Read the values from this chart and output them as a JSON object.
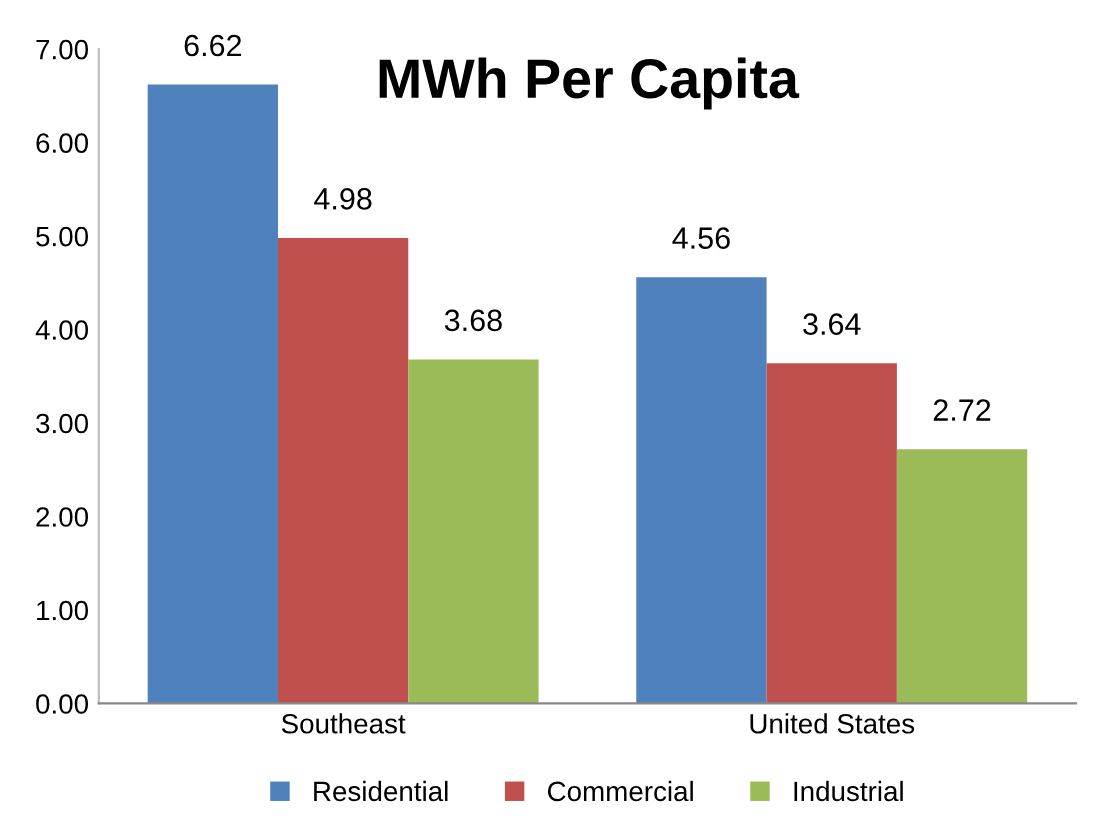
{
  "chart_data": {
    "type": "bar",
    "title": "MWh Per Capita",
    "categories": [
      "Southeast",
      "United States"
    ],
    "series": [
      {
        "name": "Residential",
        "color": "#4f81bd",
        "values": [
          6.62,
          4.56
        ]
      },
      {
        "name": "Commercial",
        "color": "#c0504d",
        "values": [
          4.98,
          3.64
        ]
      },
      {
        "name": "Industrial",
        "color": "#9bbb59",
        "values": [
          3.68,
          2.72
        ]
      }
    ],
    "ylim": [
      0,
      7
    ],
    "yticks": [
      {
        "value": 0,
        "label": "0.00"
      },
      {
        "value": 1,
        "label": "1.00"
      },
      {
        "value": 2,
        "label": "2.00"
      },
      {
        "value": 3,
        "label": "3.00"
      },
      {
        "value": 4,
        "label": "4.00"
      },
      {
        "value": 5,
        "label": "5.00"
      },
      {
        "value": 6,
        "label": "6.00"
      },
      {
        "value": 7,
        "label": "7.00"
      }
    ],
    "data_labels": true,
    "legend": "bottom",
    "grid": false
  }
}
